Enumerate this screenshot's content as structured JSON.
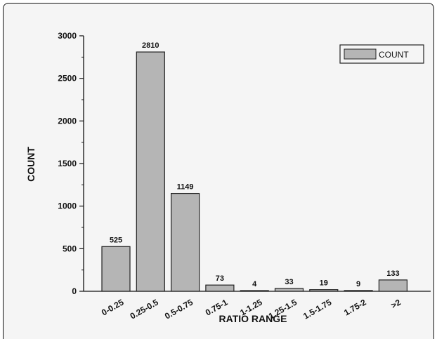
{
  "chart_data": {
    "type": "bar",
    "categories": [
      "0-0.25",
      "0.25-0.5",
      "0.5-0.75",
      "0.75-1",
      "1-1.25",
      "1.25-1.5",
      "1.5-1.75",
      "1.75-2",
      ">2"
    ],
    "series": [
      {
        "name": "COUNT",
        "values": [
          525,
          2810,
          1149,
          73,
          4,
          33,
          19,
          9,
          133
        ]
      }
    ],
    "data_labels": [
      "525",
      "2810",
      "1149",
      "73",
      "4",
      "33",
      "19",
      "9",
      "133"
    ],
    "xlabel": "RATIO RANGE",
    "ylabel": "COUNT",
    "ylim": [
      0,
      3000
    ],
    "yticks": [
      0,
      500,
      1000,
      1500,
      2000,
      2500,
      3000
    ],
    "ytick_labels": [
      "0",
      "500",
      "1000",
      "1500",
      "2000",
      "2500",
      "3000"
    ],
    "legend_position": "top-right",
    "grid": false,
    "bar_color": "#b5b5b5",
    "bar_edge_color": "#222222"
  }
}
